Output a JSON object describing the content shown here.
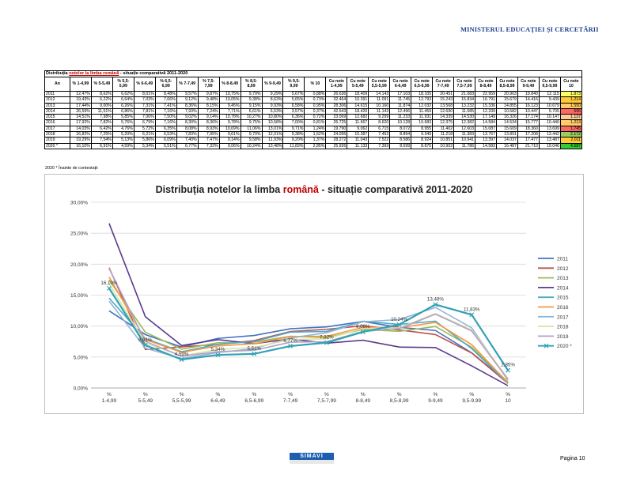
{
  "header": {
    "ministry": "MINISTERUL EDUCAȚIEI ȘI CERCETĂRII"
  },
  "table": {
    "title_prefix": "Distribuția ",
    "title_highlight": "notelor la limba română",
    "title_suffix": " - situație comparativă 2011-2020",
    "headers": [
      "An",
      "% 1-4,99",
      "% 5-5,49",
      "% 5,5-5,99",
      "% 6-6,49",
      "% 6,5-6,99",
      "% 7-7,49",
      "% 7,5-7,99",
      "% 8-8,49",
      "% 8,5-8,99",
      "% 9-9,49",
      "% 9,5-9,99",
      "% 10",
      "Cu note 1-4,99",
      "Cu note 5-5,49",
      "Cu note 5,5-5,99",
      "Cu note 6-6,49",
      "Cu note 6,5-6,99",
      "Cu note 7-7,49",
      "Cu note 7,5-7,99",
      "Cu note 8-8,49",
      "Cu note 8,5-8,99",
      "Cu note 9-9,49",
      "Cu note 9,5-9,99",
      "Cu note 10"
    ],
    "rows": [
      [
        "2011",
        "12,47%",
        "8,62%",
        "6,62%",
        "8,01%",
        "8,48%",
        "9,57%",
        "9,87%",
        "10,75%",
        "9,79%",
        "9,29%",
        "5,67%",
        "0,88%",
        "26.636",
        "18.409",
        "14.143",
        "17.103",
        "18.105",
        "20.451",
        "21.083",
        "22.959",
        "20.903",
        "19.840",
        "12.115",
        "1.873"
      ],
      [
        "2012",
        "19,43%",
        "6,22%",
        "6,64%",
        "7,03%",
        "7,66%",
        "9,12%",
        "9,48%",
        "10,05%",
        "9,38%",
        "8,63%",
        "5,65%",
        "0,73%",
        "32.464",
        "10.391",
        "11.091",
        "11.745",
        "12.793",
        "15.243",
        "15.834",
        "16.791",
        "15.679",
        "14.416",
        "9.439",
        "1.214"
      ],
      [
        "2013",
        "17,44%",
        "9,00%",
        "6,26%",
        "7,31%",
        "7,41%",
        "8,36%",
        "8,15%",
        "9,45%",
        "9,15%",
        "9,93%",
        "6,58%",
        "0,95%",
        "28.306",
        "14.615",
        "10.160",
        "11.874",
        "12.032",
        "13.568",
        "13.232",
        "15.336",
        "14.855",
        "16.123",
        "10.679",
        "1.550"
      ],
      [
        "2014",
        "26,59%",
        "11,51%",
        "6,86%",
        "7,81%",
        "7,16%",
        "7,93%",
        "7,24%",
        "7,71%",
        "6,61%",
        "6,53%",
        "3,57%",
        "0,37%",
        "42.543",
        "18.420",
        "11.143",
        "12.496",
        "11.459",
        "12.690",
        "11.585",
        "12.339",
        "10.582",
        "10.447",
        "5.705",
        "595"
      ],
      [
        "2015",
        "14,51%",
        "7,98%",
        "5,85%",
        "7,06%",
        "7,50%",
        "9,02%",
        "9,14%",
        "10,78%",
        "10,27%",
        "10,80%",
        "6,36%",
        "0,72%",
        "23.069",
        "12.682",
        "9.299",
        "11.233",
        "11.931",
        "14.339",
        "14.530",
        "17.149",
        "16.326",
        "17.174",
        "10.147",
        "1.137"
      ],
      [
        "2016",
        "17,92%",
        "7,82%",
        "5,76%",
        "6,79%",
        "7,16%",
        "8,30%",
        "8,36%",
        "9,78%",
        "9,75%",
        "10,58%",
        "7,00%",
        "0,81%",
        "26.725",
        "11.667",
        "8.620",
        "10.128",
        "10.683",
        "12.375",
        "12.382",
        "14.584",
        "14.534",
        "15.777",
        "10.440",
        "1.213"
      ],
      [
        "2017",
        "14,03%",
        "6,42%",
        "4,76%",
        "5,72%",
        "6,35%",
        "8,08%",
        "8,93%",
        "10,69%",
        "11,06%",
        "13,01%",
        "9,71%",
        "1,24%",
        "19.790",
        "9.062",
        "6.715",
        "8.072",
        "8.955",
        "11.402",
        "12.603",
        "15.087",
        "15.609",
        "18.360",
        "13.699",
        "1.745"
      ],
      [
        "2018",
        "16,82%",
        "7,25%",
        "5,20%",
        "6,21%",
        "6,53%",
        "7,83%",
        "7,95%",
        "9,61%",
        "9,70%",
        "12,01%",
        "9,38%",
        "1,52%",
        "24.095",
        "10.387",
        "7.452",
        "8.894",
        "9.349",
        "11.218",
        "11.383",
        "13.767",
        "13.891",
        "17.208",
        "13.442",
        "2.172"
      ],
      [
        "2019",
        "19,29%",
        "7,54%",
        "5,13%",
        "5,86%",
        "6,09%",
        "7,40%",
        "7,47%",
        "9,14%",
        "9,58%",
        "11,93%",
        "9,20%",
        "1,37%",
        "28.272",
        "11.043",
        "7.522",
        "8.586",
        "8.924",
        "10.851",
        "10.941",
        "13.397",
        "14.037",
        "17.477",
        "13.487",
        "2.011"
      ],
      [
        "2020 *",
        "16,10%",
        "6,91%",
        "4,59%",
        "5,34%",
        "5,51%",
        "6,77%",
        "7,32%",
        "9,06%",
        "10,24%",
        "13,48%",
        "11,83%",
        "2,85%",
        "25.926",
        "11.133",
        "7.393",
        "8.599",
        "8.875",
        "10.902",
        "11.786",
        "14.583",
        "16.487",
        "21.710",
        "19.046",
        "4.587"
      ]
    ],
    "last_col_colors": [
      "#ffff66",
      "#ffcc33",
      "#ffcc66",
      "#ff6666",
      "#ffcc99",
      "#ffcc66",
      "#ff6666",
      "#99cc66",
      "#ffcc33",
      "#33cc33"
    ]
  },
  "footnote": "2020 *  Înainte de contestații",
  "chart_data": {
    "type": "line",
    "title_prefix": "Distribuția notelor la limba ",
    "title_highlight": "română",
    "title_suffix": " - situație comparativă 2011-2020",
    "categories": [
      "%\n1-4,99",
      "%\n5-5,49",
      "%\n5,5-5,99",
      "%\n6-6,49",
      "%\n6,5-6,99",
      "%\n7-7,49",
      "%\n7,5-7,99",
      "%\n8-8,49",
      "%\n8,5-8,99",
      "%\n9-9,49",
      "%\n9,5-9,99",
      "%\n10"
    ],
    "ylim": [
      0,
      30
    ],
    "yticks": [
      "0,00%",
      "5,00%",
      "10,00%",
      "15,00%",
      "20,00%",
      "25,00%",
      "30,00%"
    ],
    "grid": true,
    "legend_position": "right",
    "series": [
      {
        "name": "2011",
        "color": "#4472c4",
        "values": [
          12.47,
          8.62,
          6.62,
          8.01,
          8.48,
          9.57,
          9.87,
          10.75,
          9.79,
          9.29,
          5.67,
          0.88
        ]
      },
      {
        "name": "2012",
        "color": "#c0504d",
        "values": [
          19.43,
          6.22,
          6.64,
          7.03,
          7.66,
          9.12,
          9.48,
          10.05,
          9.38,
          8.63,
          5.65,
          0.73
        ]
      },
      {
        "name": "2013",
        "color": "#9bbb59",
        "values": [
          17.44,
          9.0,
          6.26,
          7.31,
          7.41,
          8.36,
          8.15,
          9.45,
          9.15,
          9.93,
          6.58,
          0.95
        ]
      },
      {
        "name": "2014",
        "color": "#5b3a8c",
        "values": [
          26.59,
          11.51,
          6.86,
          7.81,
          7.16,
          7.93,
          7.24,
          7.71,
          6.61,
          6.53,
          3.57,
          0.37
        ]
      },
      {
        "name": "2015",
        "color": "#4bacc6",
        "values": [
          14.51,
          7.98,
          5.85,
          7.06,
          7.5,
          9.02,
          9.14,
          10.78,
          10.27,
          10.8,
          6.36,
          0.72
        ]
      },
      {
        "name": "2016",
        "color": "#f79646",
        "values": [
          17.92,
          7.82,
          5.76,
          6.79,
          7.16,
          8.3,
          8.36,
          9.78,
          9.75,
          10.58,
          7.0,
          0.81
        ]
      },
      {
        "name": "2017",
        "color": "#95b3d7",
        "values": [
          14.03,
          6.42,
          4.76,
          5.72,
          6.35,
          8.08,
          8.93,
          10.69,
          11.06,
          13.01,
          9.71,
          1.24
        ]
      },
      {
        "name": "2018",
        "color": "#d7e4a2",
        "values": [
          16.82,
          7.25,
          5.2,
          6.21,
          6.53,
          7.83,
          7.95,
          9.61,
          9.7,
          12.01,
          9.38,
          1.52
        ]
      },
      {
        "name": "2019",
        "color": "#b2a1c7",
        "values": [
          19.29,
          7.54,
          5.13,
          5.86,
          6.09,
          7.4,
          7.47,
          9.14,
          9.58,
          11.93,
          9.2,
          1.37
        ]
      },
      {
        "name": "2020 *",
        "color": "#31a0b5",
        "values": [
          16.1,
          6.91,
          4.59,
          5.34,
          5.51,
          6.77,
          7.32,
          9.06,
          10.24,
          13.48,
          11.83,
          2.85
        ]
      }
    ],
    "data_labels": [
      "16,10%",
      "6,91%",
      "4,59%",
      "5,34%",
      "5,51%",
      "6,77%",
      "7,32%",
      "9,06%",
      "10,24%",
      "13,48%",
      "11,83%",
      "2,85%"
    ]
  },
  "footer": {
    "logo": "SIMAVI",
    "page": "Pagina 10"
  }
}
